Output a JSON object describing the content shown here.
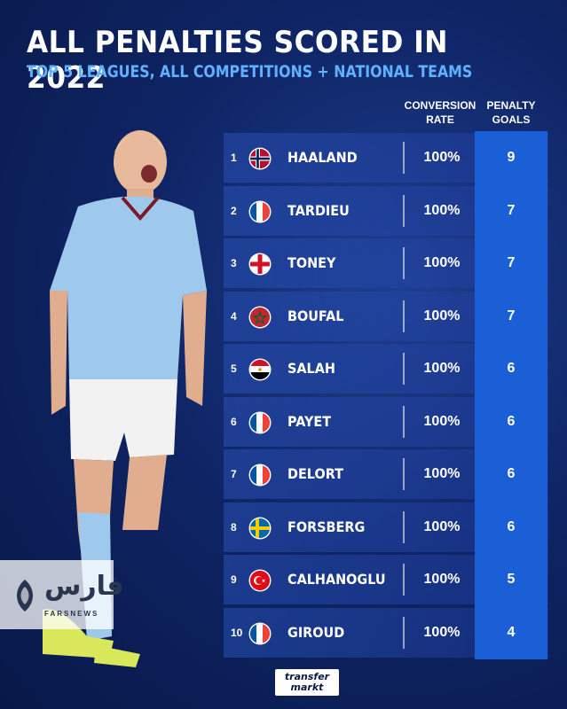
{
  "header": {
    "title": "ALL PENALTIES SCORED IN 2022",
    "subtitle": "TOP 5 LEAGUES, ALL COMPETITIONS + NATIONAL TEAMS"
  },
  "columns": {
    "rate_line1": "CONVERSION",
    "rate_line2": "RATE",
    "goals_line1": "PENALTY",
    "goals_line2": "GOALS"
  },
  "rows": [
    {
      "rank": "1",
      "name": "HAALAND",
      "flag": "norway-flag",
      "rate": "100%",
      "goals": "9"
    },
    {
      "rank": "2",
      "name": "TARDIEU",
      "flag": "france-flag",
      "rate": "100%",
      "goals": "7"
    },
    {
      "rank": "3",
      "name": "TONEY",
      "flag": "england-flag",
      "rate": "100%",
      "goals": "7"
    },
    {
      "rank": "4",
      "name": "BOUFAL",
      "flag": "morocco-flag",
      "rate": "100%",
      "goals": "7"
    },
    {
      "rank": "5",
      "name": "SALAH",
      "flag": "egypt-flag",
      "rate": "100%",
      "goals": "6"
    },
    {
      "rank": "6",
      "name": "PAYET",
      "flag": "france-flag",
      "rate": "100%",
      "goals": "6"
    },
    {
      "rank": "7",
      "name": "DELORT",
      "flag": "france-flag",
      "rate": "100%",
      "goals": "6"
    },
    {
      "rank": "8",
      "name": "FORSBERG",
      "flag": "sweden-flag",
      "rate": "100%",
      "goals": "6"
    },
    {
      "rank": "9",
      "name": "CALHANOGLU",
      "flag": "turkey-flag",
      "rate": "100%",
      "goals": "5"
    },
    {
      "rank": "10",
      "name": "GIROUD",
      "flag": "france-flag",
      "rate": "100%",
      "goals": "4"
    }
  ],
  "watermark": {
    "main": "فارس",
    "sub": "FARSNEWS"
  },
  "logo": {
    "line1": "transfer",
    "line2": "markt"
  },
  "colors": {
    "accent": "#5fb2ff",
    "goals_cell": "#1b5fd6",
    "background": "#0f2566"
  }
}
